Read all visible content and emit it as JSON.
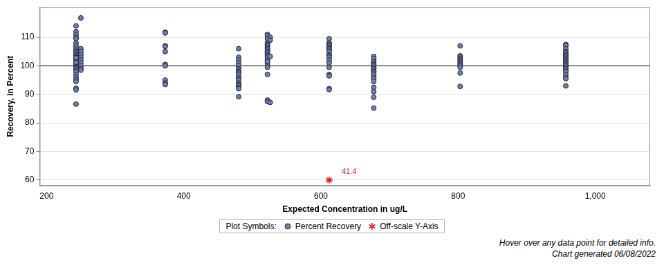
{
  "chart_data": {
    "type": "scatter",
    "x_label": "Expected Concentration in ug/L",
    "y_label": "Recovery, in Percent",
    "xlim": [
      190,
      1080
    ],
    "xticks": [
      200,
      400,
      600,
      800,
      1000
    ],
    "ylim": [
      58,
      120.6
    ],
    "yticks": [
      60,
      70,
      80,
      90,
      100,
      110
    ],
    "grid": "y",
    "hline": 100,
    "legend": "bottom",
    "legend_title": "Plot Symbols:",
    "series": [
      {
        "name": "Percent Recovery",
        "color": "#6f7eb0",
        "marker": "circle",
        "x": [
          243,
          243,
          243,
          243,
          243,
          243,
          243,
          243,
          243,
          243,
          243,
          243,
          243,
          243,
          243,
          243,
          243,
          243,
          243,
          243,
          243,
          243,
          243,
          243,
          243,
          243,
          243,
          243,
          243,
          243,
          243,
          243,
          243,
          250,
          250,
          250,
          250,
          250,
          250,
          250,
          250,
          250,
          250,
          373,
          373,
          373,
          373,
          373,
          373,
          373,
          373,
          373,
          373,
          480,
          480,
          480,
          480,
          480,
          480,
          480,
          480,
          480,
          480,
          480,
          480,
          480,
          480,
          480,
          480,
          480,
          480,
          480,
          522,
          522,
          522,
          522,
          522,
          522,
          522,
          522,
          522,
          522,
          522,
          522,
          522,
          522,
          522,
          522,
          522,
          522,
          522,
          522,
          522,
          522,
          526,
          526,
          526,
          526,
          612,
          612,
          612,
          612,
          612,
          612,
          612,
          612,
          612,
          612,
          612,
          612,
          612,
          612,
          612,
          612,
          612,
          612,
          677,
          677,
          677,
          677,
          677,
          677,
          677,
          677,
          677,
          677,
          677,
          677,
          677,
          677,
          677,
          677,
          677,
          677,
          677,
          803,
          803,
          803,
          803,
          803,
          803,
          803,
          803,
          803,
          803,
          803,
          803,
          957,
          957,
          957,
          957,
          957,
          957,
          957,
          957,
          957,
          957,
          957,
          957,
          957,
          957,
          957,
          957,
          957,
          957,
          957,
          957,
          957,
          957
        ],
        "values": [
          114,
          112,
          111,
          110,
          109.5,
          108,
          107,
          106.2,
          105.5,
          105,
          104.5,
          104,
          103.5,
          103,
          102.5,
          102,
          101.5,
          101,
          100.5,
          100,
          99.5,
          99,
          98.5,
          98,
          97,
          96,
          95.2,
          94.5,
          92.2,
          91.6,
          86.6,
          102.8,
          101.2,
          116.8,
          106,
          105,
          104,
          103,
          102,
          101,
          100,
          99,
          98.5,
          111.8,
          111.5,
          107,
          106.8,
          105,
          100.5,
          100,
          95,
          94,
          93.5,
          106,
          103,
          102,
          101,
          100,
          99,
          98.5,
          98,
          97.5,
          97,
          96,
          95.5,
          95,
          94,
          93.5,
          93,
          92.5,
          92,
          89.2,
          111,
          110.5,
          109.5,
          108,
          107.5,
          107,
          106.5,
          106,
          105.5,
          105,
          104.5,
          104,
          103.5,
          103,
          102,
          101,
          100,
          99.5,
          97,
          88,
          87.5,
          101.5,
          110,
          109,
          103.3,
          87.2,
          109.5,
          108,
          107.5,
          107,
          106.5,
          106,
          105.5,
          105,
          104,
          103.5,
          103,
          102,
          101,
          99.5,
          97,
          96.5,
          92,
          91.7,
          103.3,
          102.5,
          101.5,
          101,
          100.5,
          100,
          99.5,
          99,
          98.5,
          98,
          97.5,
          97,
          96,
          95.5,
          94.5,
          92.5,
          91,
          89,
          85.2,
          107,
          103.5,
          103,
          102.5,
          102,
          101.5,
          101,
          100.5,
          100,
          99.5,
          97.5,
          92.8,
          107.5,
          107,
          106,
          105,
          104.5,
          104,
          103.5,
          103,
          102.5,
          102,
          101.5,
          101,
          100.5,
          100,
          99.5,
          99,
          98.5,
          98,
          97,
          96,
          95.5,
          93
        ]
      },
      {
        "name": "Off-scale Y-Axis",
        "color": "#e8101c",
        "marker": "star",
        "x": [
          612
        ],
        "values": [
          60
        ]
      }
    ],
    "annotations": [
      {
        "x": 612,
        "y": 60,
        "text": "41.4",
        "color": "#e8101c"
      }
    ],
    "footnotes": [
      "Hover over any data point for detailed info.",
      "Chart generated 06/08/2022"
    ]
  }
}
